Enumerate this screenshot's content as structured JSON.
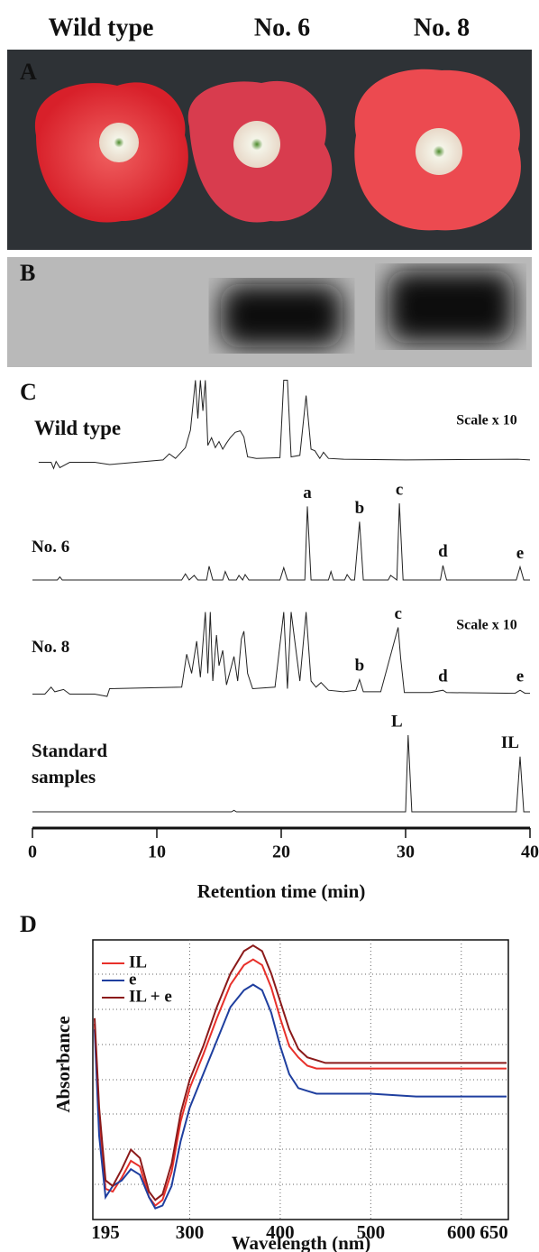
{
  "header": {
    "columns": [
      "Wild type",
      "No. 6",
      "No. 8"
    ]
  },
  "panels": [
    "A",
    "B",
    "C",
    "D"
  ],
  "chart_data": [
    {
      "type": "line",
      "xlabel": "Retention time (min)",
      "xlim": [
        0,
        40
      ],
      "xticks": [
        0,
        10,
        20,
        30,
        40
      ],
      "ylim": [
        0,
        100
      ],
      "series": [
        {
          "name": "Wild type",
          "color": "#222222",
          "scale_note": "Scale x 10",
          "peaks": [],
          "x": [
            0.5,
            1.5,
            1.7,
            1.9,
            2.2,
            3,
            5,
            6.2,
            10.5,
            11,
            11.5,
            12.3,
            12.7,
            13.1,
            13.3,
            13.5,
            13.7,
            13.9,
            14.1,
            14.4,
            14.7,
            15,
            15.3,
            15.6,
            15.9,
            16.3,
            16.7,
            17,
            17.3,
            18,
            19.9,
            20.2,
            20.5,
            20.8,
            21.5,
            22,
            22.4,
            22.7,
            23.1,
            23.4,
            23.8,
            25,
            30,
            39,
            40
          ],
          "values": [
            3,
            3,
            -5,
            4,
            -4,
            3,
            3,
            0,
            6,
            14,
            8,
            22,
            45,
            110,
            60,
            110,
            70,
            110,
            25,
            35,
            22,
            30,
            20,
            28,
            35,
            42,
            44,
            36,
            10,
            8,
            9,
            110,
            110,
            10,
            12,
            90,
            20,
            18,
            8,
            16,
            8,
            7,
            6,
            7,
            6
          ]
        },
        {
          "name": "No. 6",
          "color": "#222222",
          "peaks": [
            {
              "label": "a",
              "x": 22.1
            },
            {
              "label": "b",
              "x": 26.3
            },
            {
              "label": "c",
              "x": 29.5
            },
            {
              "label": "d",
              "x": 33
            },
            {
              "label": "e",
              "x": 39.2
            }
          ],
          "x": [
            0,
            2,
            2.2,
            2.4,
            12,
            12.3,
            12.6,
            13,
            13.3,
            14,
            14.2,
            14.5,
            15.3,
            15.5,
            15.8,
            16.4,
            16.6,
            16.9,
            17.1,
            17.4,
            19.9,
            20.2,
            20.5,
            21.9,
            22.1,
            22.4,
            23.8,
            24,
            24.2,
            25.1,
            25.3,
            25.6,
            25.9,
            26.3,
            26.6,
            28.6,
            28.8,
            29.3,
            29.5,
            29.8,
            32.8,
            33,
            33.3,
            38.9,
            39.2,
            39.5,
            40
          ],
          "values": [
            0,
            0,
            4,
            0,
            0,
            8,
            0,
            6,
            0,
            0,
            18,
            0,
            0,
            11,
            0,
            0,
            6,
            0,
            7,
            0,
            0,
            16,
            0,
            0,
            96,
            0,
            0,
            11,
            0,
            0,
            7,
            0,
            0,
            76,
            0,
            0,
            6,
            0,
            100,
            0,
            0,
            19,
            0,
            0,
            17,
            0,
            0
          ]
        },
        {
          "name": "No. 8",
          "color": "#222222",
          "scale_note": "Scale x 10",
          "peaks": [
            {
              "label": "b",
              "x": 26.3
            },
            {
              "label": "c",
              "x": 29.4
            },
            {
              "label": "d",
              "x": 33
            },
            {
              "label": "e",
              "x": 39.2
            }
          ],
          "x": [
            0,
            1,
            1.5,
            1.8,
            2.5,
            3,
            5,
            6,
            6.2,
            12,
            12.4,
            12.8,
            13.2,
            13.5,
            13.9,
            14.1,
            14.3,
            14.5,
            14.8,
            15,
            15.3,
            15.6,
            16.2,
            16.5,
            16.8,
            17,
            17.3,
            17.7,
            19.5,
            20.2,
            20.5,
            20.8,
            21.5,
            22,
            22.4,
            22.8,
            23.2,
            23.8,
            25,
            26,
            26.3,
            26.6,
            28,
            29.4,
            29.6,
            29.9,
            32,
            33,
            33.3,
            38.8,
            39.2,
            39.6,
            40
          ],
          "values": [
            3,
            3,
            12,
            6,
            9,
            3,
            3,
            0,
            10,
            12,
            55,
            30,
            72,
            25,
            110,
            30,
            110,
            20,
            80,
            40,
            60,
            15,
            52,
            20,
            75,
            85,
            30,
            10,
            12,
            110,
            10,
            110,
            20,
            110,
            20,
            12,
            18,
            8,
            6,
            8,
            22,
            6,
            6,
            90,
            50,
            5,
            5,
            8,
            5,
            4,
            8,
            4,
            4
          ]
        },
        {
          "name": "Standard samples",
          "color": "#222222",
          "peaks": [
            {
              "label": "L",
              "x": 29.3
            },
            {
              "label": "IL",
              "x": 38.4
            }
          ],
          "x": [
            0,
            16,
            16.2,
            16.4,
            30,
            30.2,
            30.5,
            38.9,
            39.2,
            39.5,
            40
          ],
          "values": [
            0,
            0,
            2,
            0,
            0,
            100,
            0,
            0,
            72,
            0,
            0
          ]
        }
      ]
    },
    {
      "type": "line",
      "xlabel": "Wavelength (nm)",
      "ylabel": "Absorbance",
      "xlim": [
        195,
        650
      ],
      "xticks": [
        195,
        300,
        400,
        500,
        600,
        650
      ],
      "ylim": [
        0,
        100
      ],
      "x": [
        195,
        200,
        207,
        215,
        225,
        235,
        245,
        255,
        262,
        270,
        280,
        290,
        300,
        315,
        330,
        345,
        360,
        370,
        380,
        390,
        400,
        410,
        420,
        430,
        440,
        450,
        500,
        550,
        600,
        650
      ],
      "series": [
        {
          "name": "IL",
          "color": "#e8302a",
          "values": [
            70,
            35,
            11,
            10,
            15,
            21,
            19,
            8,
            5,
            7,
            17,
            35,
            47,
            59,
            72,
            84,
            91,
            93,
            91,
            83,
            72,
            62,
            58,
            55,
            54,
            54,
            54,
            54,
            54,
            54
          ]
        },
        {
          "name": "e",
          "color": "#1f3f9f",
          "values": [
            68,
            30,
            8,
            12,
            14,
            18,
            16,
            8,
            4,
            5,
            12,
            28,
            40,
            52,
            64,
            76,
            82,
            84,
            82,
            74,
            62,
            52,
            47,
            46,
            45,
            45,
            45,
            44,
            44,
            44
          ]
        },
        {
          "name": "IL + e",
          "color": "#8b1a1a",
          "values": [
            72,
            40,
            14,
            12,
            18,
            25,
            22,
            10,
            7,
            9,
            20,
            38,
            50,
            62,
            76,
            88,
            96,
            98,
            96,
            88,
            78,
            68,
            61,
            58,
            57,
            56,
            56,
            56,
            56,
            56
          ]
        }
      ]
    }
  ]
}
